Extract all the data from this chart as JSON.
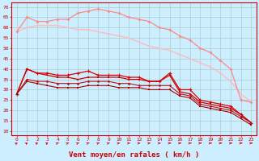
{
  "xlabel": "Vent moyen/en rafales ( km/h )",
  "background_color": "#cceeff",
  "grid_color": "#aacccc",
  "x": [
    0,
    1,
    2,
    3,
    4,
    5,
    6,
    7,
    8,
    9,
    10,
    11,
    12,
    13,
    14,
    15,
    16,
    17,
    18,
    19,
    20,
    21,
    22,
    23
  ],
  "line1": [
    58,
    60,
    61,
    61,
    61,
    60,
    59,
    59,
    58,
    57,
    56,
    55,
    53,
    51,
    50,
    49,
    47,
    45,
    43,
    41,
    38,
    34,
    28,
    24
  ],
  "line2": [
    58,
    65,
    63,
    63,
    64,
    64,
    67,
    68,
    69,
    68,
    67,
    65,
    64,
    63,
    60,
    59,
    56,
    54,
    50,
    48,
    44,
    40,
    25,
    24
  ],
  "line3": [
    28,
    40,
    38,
    38,
    37,
    37,
    38,
    39,
    37,
    37,
    37,
    36,
    36,
    34,
    34,
    38,
    30,
    30,
    25,
    24,
    23,
    22,
    18,
    14
  ],
  "line4": [
    28,
    40,
    38,
    37,
    36,
    36,
    35,
    36,
    36,
    36,
    36,
    35,
    35,
    34,
    34,
    37,
    29,
    28,
    24,
    23,
    22,
    21,
    18,
    14
  ],
  "line5": [
    28,
    35,
    34,
    34,
    33,
    33,
    33,
    34,
    34,
    34,
    33,
    33,
    32,
    32,
    32,
    32,
    28,
    27,
    23,
    22,
    21,
    20,
    17,
    14
  ],
  "line6": [
    28,
    34,
    33,
    32,
    31,
    31,
    31,
    32,
    32,
    32,
    31,
    31,
    31,
    30,
    30,
    30,
    27,
    26,
    22,
    21,
    20,
    19,
    16,
    13
  ],
  "line1_color": "#ffbbbb",
  "line2_color": "#ff8888",
  "line3_color": "#dd0000",
  "line4_color": "#cc0000",
  "line5_color": "#bb1111",
  "line6_color": "#aa0000",
  "ylim": [
    8,
    72
  ],
  "xlim": [
    -0.5,
    23.5
  ],
  "yticks": [
    10,
    15,
    20,
    25,
    30,
    35,
    40,
    45,
    50,
    55,
    60,
    65,
    70
  ],
  "xticks": [
    0,
    1,
    2,
    3,
    4,
    5,
    6,
    7,
    8,
    9,
    10,
    11,
    12,
    13,
    14,
    15,
    16,
    17,
    18,
    19,
    20,
    21,
    22,
    23
  ],
  "arrow_angles_deg": [
    45,
    50,
    55,
    55,
    60,
    60,
    60,
    65,
    65,
    70,
    75,
    80,
    85,
    85,
    85,
    90,
    90,
    90,
    90,
    90,
    90,
    90,
    90,
    90
  ]
}
